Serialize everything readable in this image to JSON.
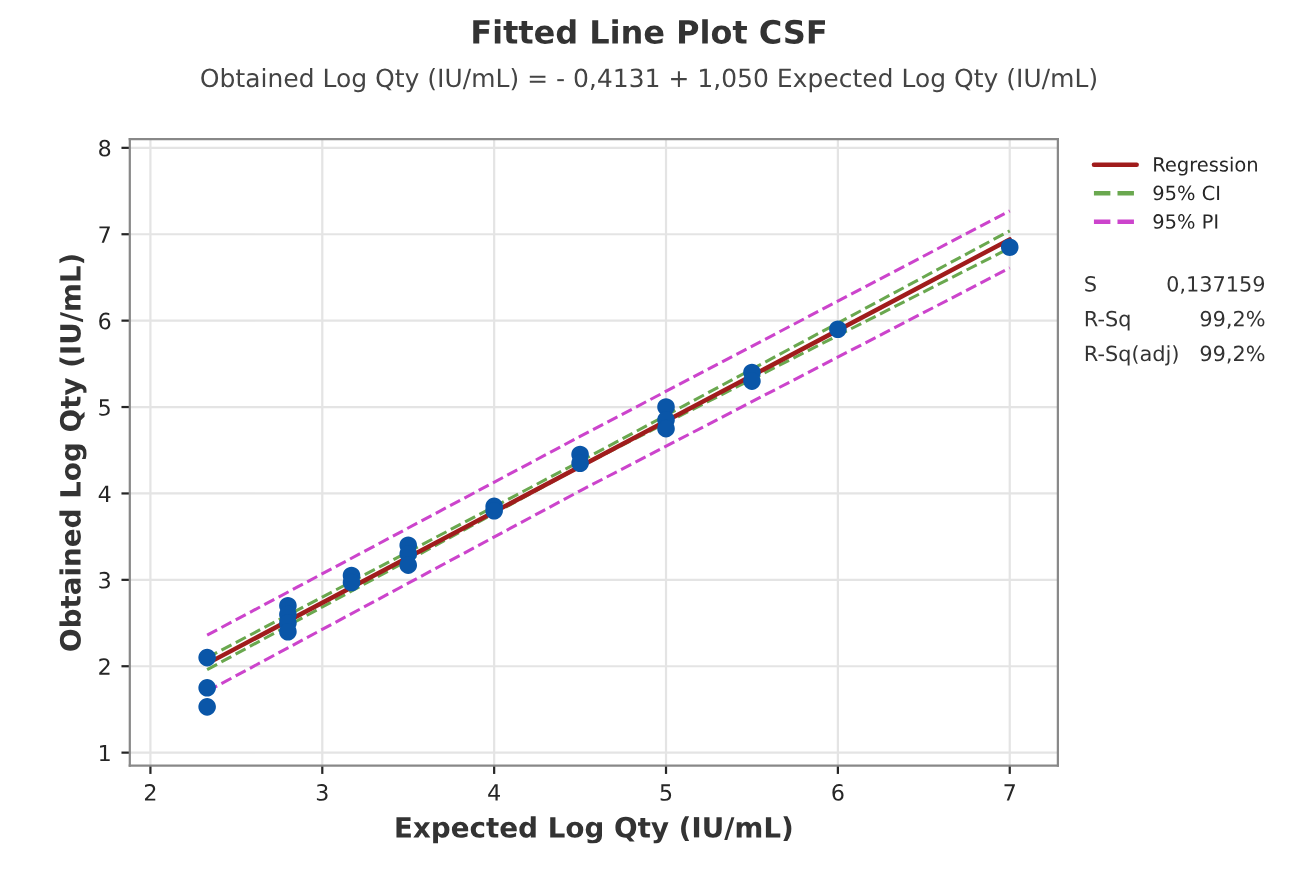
{
  "chart_data": {
    "type": "scatter",
    "title": "Fitted Line Plot CSF",
    "subtitle": "Obtained Log Qty (IU/mL) = - 0,4131 + 1,050 Expected Log Qty (IU/mL)",
    "xlabel": "Expected Log Qty (IU/mL)",
    "ylabel": "Obtained Log Qty (IU/mL)",
    "series": [
      {
        "type": "scatter",
        "marker": "circle",
        "color": "#0a56a8",
        "x": [
          2.33,
          2.33,
          2.33,
          2.8,
          2.8,
          2.8,
          2.8,
          3.17,
          3.17,
          3.5,
          3.5,
          3.5,
          4,
          4,
          4.5,
          4.5,
          5,
          5,
          5,
          5.5,
          5.5,
          6,
          7
        ],
        "values": [
          2.1,
          1.75,
          1.53,
          2.7,
          2.6,
          2.5,
          2.4,
          3.05,
          2.97,
          3.4,
          3.3,
          3.17,
          3.85,
          3.8,
          4.45,
          4.35,
          5.0,
          4.85,
          4.75,
          5.4,
          5.3,
          5.9,
          6.85
        ]
      },
      {
        "type": "line",
        "name": "Regression",
        "color": "#a01c1c",
        "line_style": "solid",
        "x": [
          2.33,
          7
        ],
        "values": [
          2.03,
          6.94
        ]
      },
      {
        "type": "line",
        "name": "95% CI",
        "color": "#6aa84f",
        "line_style": "dashed",
        "x": [
          2.33,
          4.5,
          7
        ],
        "values": [
          2.1,
          4.37,
          7.04
        ]
      },
      {
        "type": "line",
        "color": "#6aa84f",
        "line_style": "dashed",
        "x": [
          2.33,
          4.5,
          7
        ],
        "values": [
          1.96,
          4.31,
          6.84
        ]
      },
      {
        "type": "line",
        "name": "95% PI",
        "color": "#cc44cc",
        "line_style": "dashed",
        "x": [
          2.33,
          4.5,
          7
        ],
        "values": [
          2.36,
          4.66,
          7.27
        ]
      },
      {
        "type": "line",
        "color": "#cc44cc",
        "line_style": "dashed",
        "x": [
          2.33,
          4.5,
          7
        ],
        "values": [
          1.71,
          4.03,
          6.61
        ]
      }
    ],
    "annotations": [
      "S",
      "0,137159",
      "R-Sq",
      "99,2%",
      "R-Sq(adj)",
      "99,2%"
    ],
    "xlim": [
      1.88,
      7.28
    ],
    "ylim": [
      0.85,
      8.1
    ],
    "xticks": [
      2,
      3,
      4,
      5,
      6,
      7
    ],
    "yticks": [
      1,
      2,
      3,
      4,
      5,
      6,
      7,
      8
    ],
    "grid": true,
    "legend": "top right"
  }
}
